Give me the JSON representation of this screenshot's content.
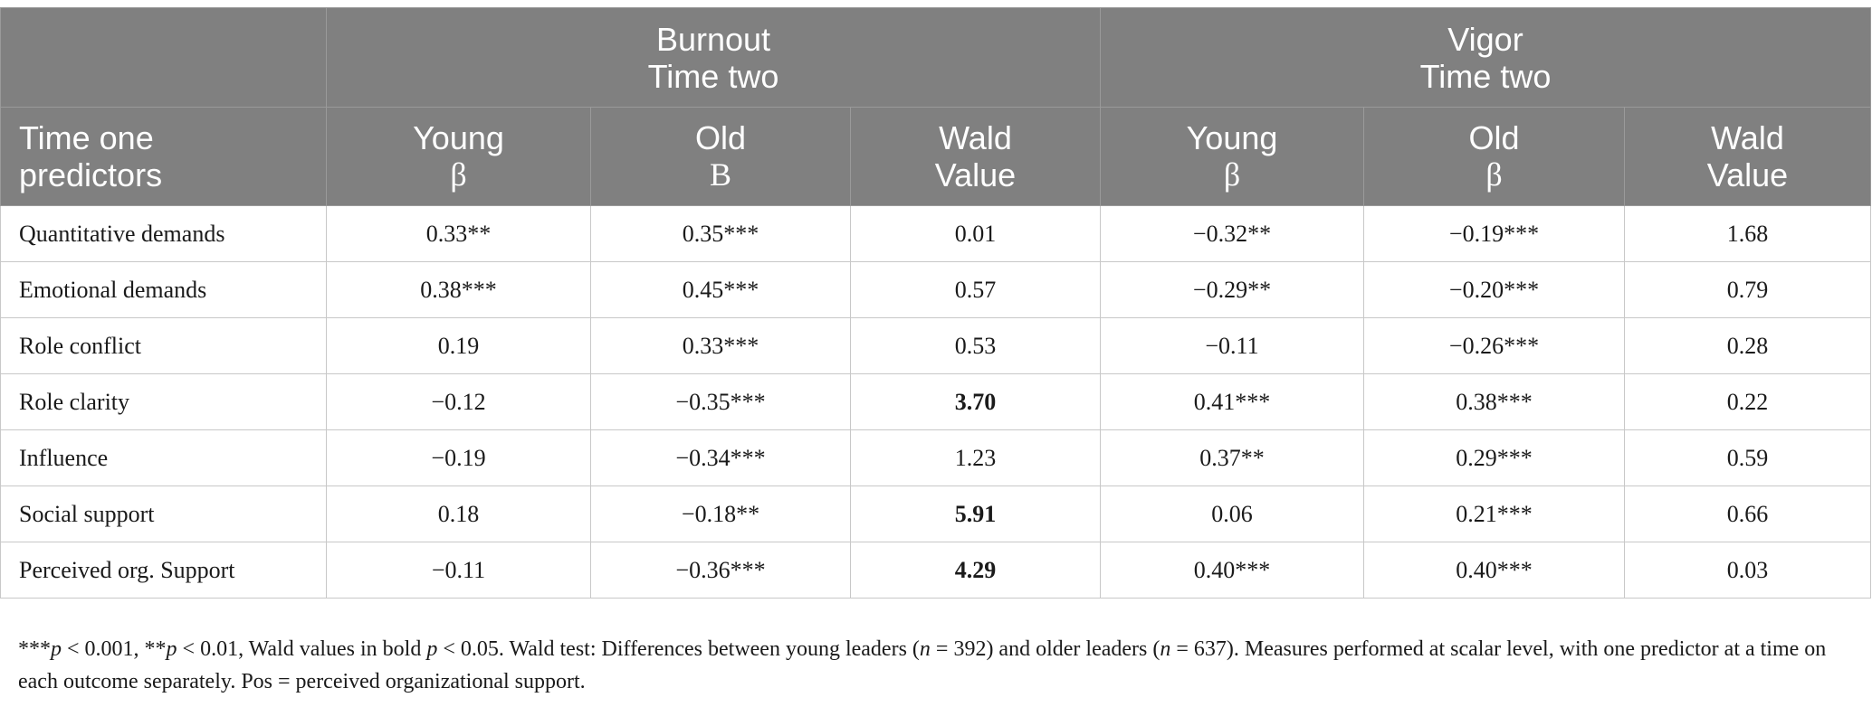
{
  "table": {
    "group_headers": [
      {
        "line1": "Burnout",
        "line2": "Time two"
      },
      {
        "line1": "Vigor",
        "line2": "Time two"
      }
    ],
    "row_header": {
      "line1": "Time one",
      "line2": "predictors"
    },
    "sub_headers": [
      {
        "line1": "Young",
        "line2": "β"
      },
      {
        "line1": "Old",
        "line2": "B"
      },
      {
        "line1": "Wald",
        "line2": "Value"
      },
      {
        "line1": "Young",
        "line2": "β"
      },
      {
        "line1": "Old",
        "line2": "β"
      },
      {
        "line1": "Wald",
        "line2": "Value"
      }
    ],
    "rows": [
      {
        "label": "Quantitative demands",
        "cells": [
          "0.33**",
          "0.35***",
          "0.01",
          "−0.32**",
          "−0.19***",
          "1.68"
        ]
      },
      {
        "label": "Emotional demands",
        "cells": [
          "0.38***",
          "0.45***",
          "0.57",
          "−0.29**",
          "−0.20***",
          "0.79"
        ]
      },
      {
        "label": "Role conflict",
        "cells": [
          "0.19",
          "0.33***",
          "0.53",
          "−0.11",
          "−0.26***",
          "0.28"
        ]
      },
      {
        "label": "Role clarity",
        "cells": [
          "−0.12",
          "−0.35***",
          "3.70",
          "0.41***",
          "0.38***",
          "0.22"
        ]
      },
      {
        "label": "Influence",
        "cells": [
          "−0.19",
          "−0.34***",
          "1.23",
          "0.37**",
          "0.29***",
          "0.59"
        ]
      },
      {
        "label": "Social support",
        "cells": [
          "0.18",
          "−0.18**",
          "5.91",
          "0.06",
          "0.21***",
          "0.66"
        ]
      },
      {
        "label": "Perceived org. Support",
        "cells": [
          "−0.11",
          "−0.36***",
          "4.29",
          "0.40***",
          "0.40***",
          "0.03"
        ]
      }
    ]
  },
  "footnote": {
    "s1": "***",
    "p1": "p",
    "s2": " < 0.001, **",
    "p2": "p",
    "s3": " < 0.01, Wald values in bold ",
    "p3": "p",
    "s4": " < 0.05. Wald test: Differences between young leaders (",
    "n1": "n",
    "s5": " = 392) and older leaders (",
    "n2": "n",
    "s6": " = 637). Measures performed at scalar level, with one predictor at a time on each outcome separately. Pos = perceived organizational support."
  }
}
